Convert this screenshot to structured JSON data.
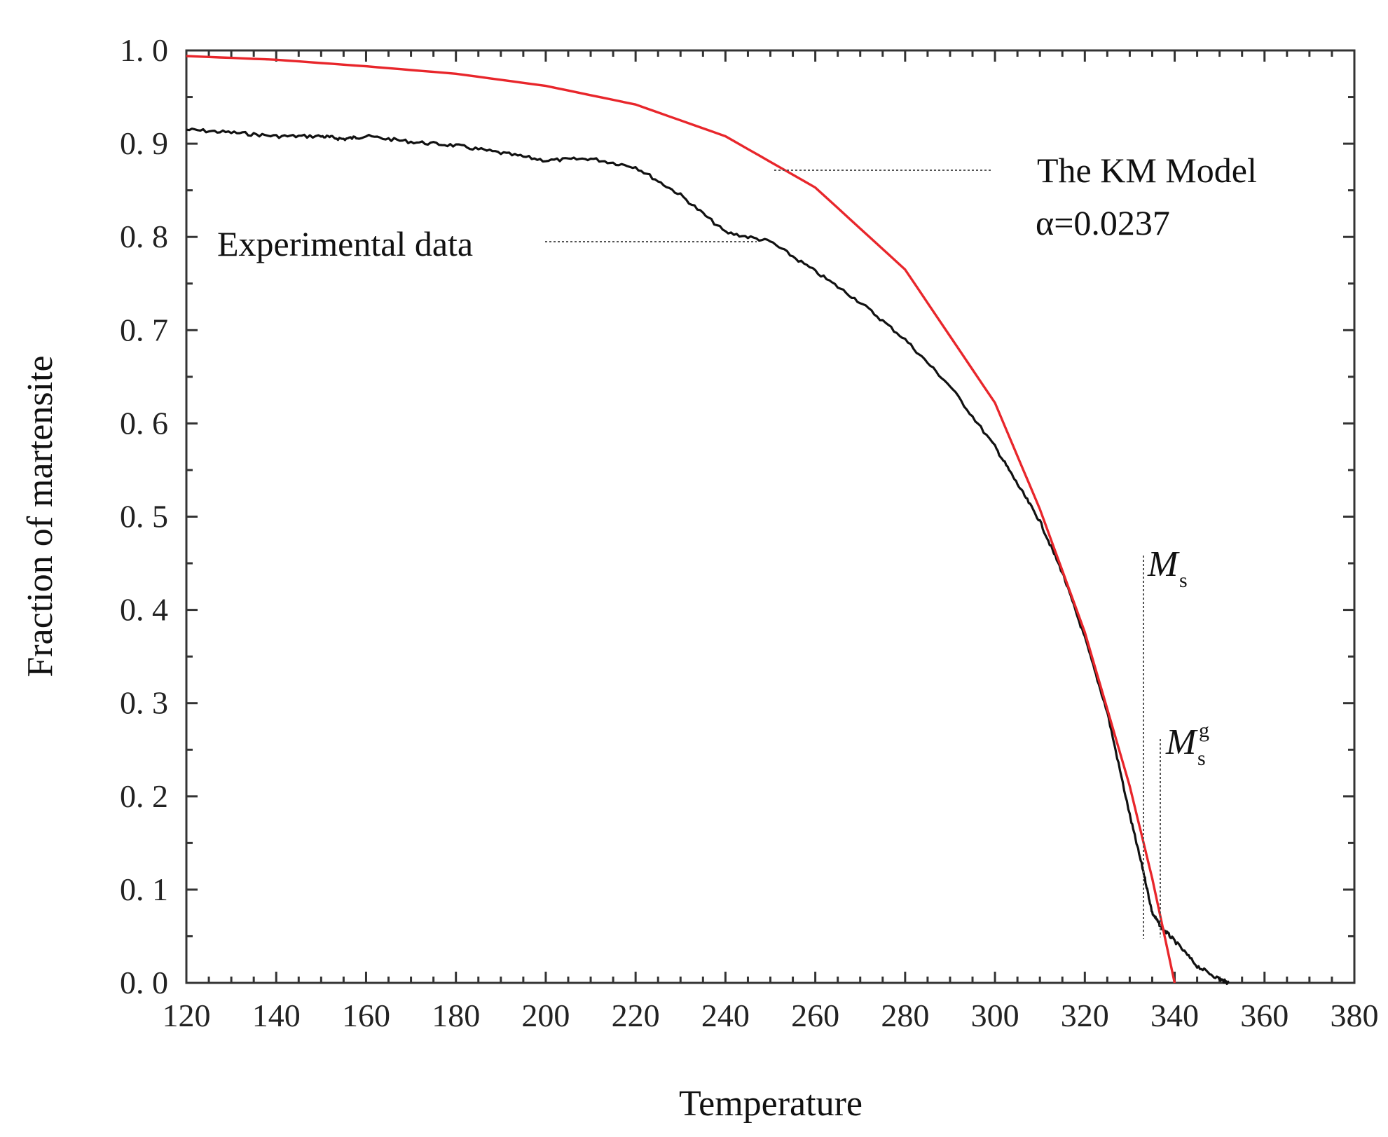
{
  "chart_data": {
    "type": "line",
    "title": "",
    "xlabel": "Temperature",
    "ylabel": "Fraction of martensite",
    "xlim": [
      120,
      380
    ],
    "ylim": [
      0.0,
      1.0
    ],
    "xticks": [
      "120",
      "140",
      "160",
      "180",
      "200",
      "220",
      "240",
      "260",
      "280",
      "300",
      "320",
      "340",
      "360",
      "380"
    ],
    "yticks": [
      "0. 0",
      "0. 1",
      "0. 2",
      "0. 3",
      "0. 4",
      "0. 5",
      "0. 6",
      "0. 7",
      "0. 8",
      "0. 9",
      "1. 0"
    ],
    "grid": false,
    "series": [
      {
        "name": "Experimental data",
        "color": "#111111",
        "x": [
          120,
          130,
          140,
          150,
          155,
          160,
          170,
          180,
          190,
          200,
          210,
          220,
          230,
          240,
          250,
          260,
          270,
          280,
          290,
          300,
          305,
          310,
          315,
          320,
          325,
          330,
          333,
          335,
          337,
          340,
          345,
          350,
          352
        ],
        "y": [
          0.915,
          0.912,
          0.908,
          0.908,
          0.905,
          0.908,
          0.902,
          0.898,
          0.89,
          0.882,
          0.884,
          0.875,
          0.845,
          0.805,
          0.795,
          0.763,
          0.73,
          0.69,
          0.64,
          0.575,
          0.535,
          0.495,
          0.44,
          0.37,
          0.29,
          0.18,
          0.12,
          0.075,
          0.06,
          0.045,
          0.018,
          0.004,
          0.0
        ]
      },
      {
        "name": "The KM Model",
        "color": "#e8262b",
        "x": [
          120,
          140,
          160,
          180,
          200,
          220,
          240,
          260,
          280,
          300,
          310,
          320,
          330,
          335,
          340
        ],
        "y": [
          0.994,
          0.99,
          0.983,
          0.975,
          0.962,
          0.942,
          0.908,
          0.853,
          0.765,
          0.622,
          0.508,
          0.376,
          0.211,
          0.112,
          0.0
        ]
      }
    ],
    "annotations": {
      "experimental_label": "Experimental data",
      "model_label": "The KM Model",
      "alpha_label": "α=0.0237",
      "ms_main": "M",
      "ms_sub": "s",
      "msg_main": "M",
      "msg_sub": "s",
      "msg_sup": "g",
      "ms_temperature": 336,
      "msg_temperature": 340
    }
  }
}
